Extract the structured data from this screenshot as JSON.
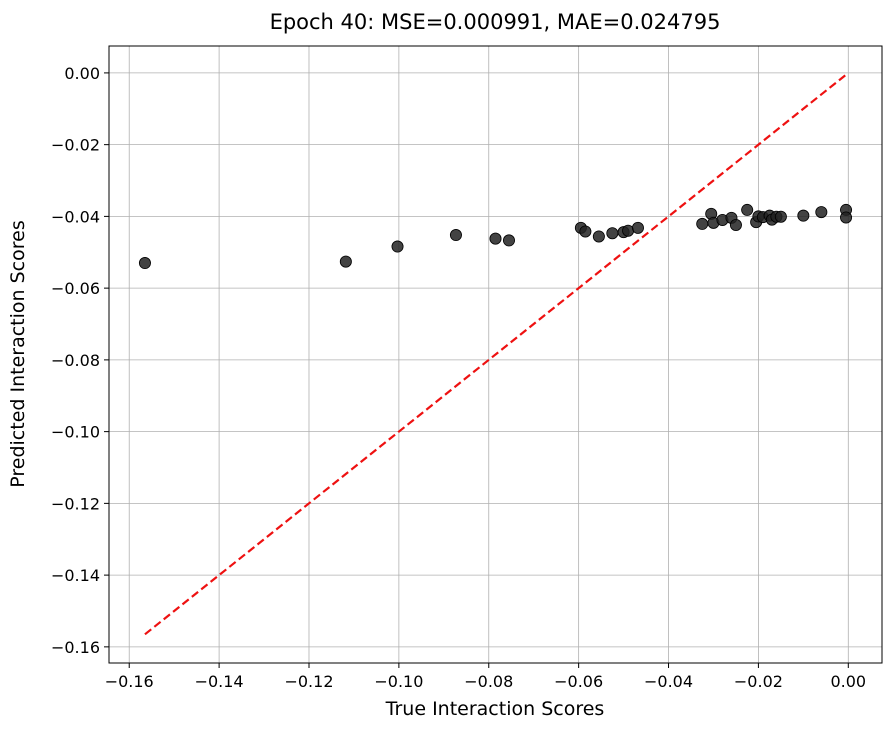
{
  "chart_data": {
    "type": "scatter",
    "title": "Epoch 40: MSE=0.000991, MAE=0.024795",
    "xlabel": "True Interaction Scores",
    "ylabel": "Predicted Interaction Scores",
    "xlim": [
      -0.1645,
      0.0075
    ],
    "ylim": [
      -0.1645,
      0.0075
    ],
    "grid": true,
    "xticks": [
      -0.16,
      -0.14,
      -0.12,
      -0.1,
      -0.08,
      -0.06,
      -0.04,
      -0.02,
      0.0
    ],
    "yticks": [
      -0.16,
      -0.14,
      -0.12,
      -0.1,
      -0.08,
      -0.06,
      -0.04,
      -0.02,
      0.0
    ],
    "xtick_labels": [
      "−0.16",
      "−0.14",
      "−0.12",
      "−0.10",
      "−0.08",
      "−0.06",
      "−0.04",
      "−0.02",
      "0.00"
    ],
    "ytick_labels": [
      "−0.16",
      "−0.14",
      "−0.12",
      "−0.10",
      "−0.08",
      "−0.06",
      "−0.04",
      "−0.02",
      "0.00"
    ],
    "point_color": "#222222",
    "reference_line": {
      "from": [
        -0.1565,
        -0.1565
      ],
      "to": [
        0.0,
        0.0
      ],
      "color": "#ee1111",
      "style": "dashed"
    },
    "points": [
      {
        "x": -0.1565,
        "y": -0.053
      },
      {
        "x": -0.1118,
        "y": -0.0526
      },
      {
        "x": -0.1003,
        "y": -0.0484
      },
      {
        "x": -0.0873,
        "y": -0.0452
      },
      {
        "x": -0.0785,
        "y": -0.0462
      },
      {
        "x": -0.0755,
        "y": -0.0467
      },
      {
        "x": -0.0595,
        "y": -0.0432
      },
      {
        "x": -0.0585,
        "y": -0.0442
      },
      {
        "x": -0.0555,
        "y": -0.0456
      },
      {
        "x": -0.0525,
        "y": -0.0447
      },
      {
        "x": -0.05,
        "y": -0.0444
      },
      {
        "x": -0.049,
        "y": -0.044
      },
      {
        "x": -0.0468,
        "y": -0.0432
      },
      {
        "x": -0.0325,
        "y": -0.0421
      },
      {
        "x": -0.0305,
        "y": -0.0393
      },
      {
        "x": -0.03,
        "y": -0.0418
      },
      {
        "x": -0.028,
        "y": -0.041
      },
      {
        "x": -0.026,
        "y": -0.0404
      },
      {
        "x": -0.025,
        "y": -0.0424
      },
      {
        "x": -0.0225,
        "y": -0.0382
      },
      {
        "x": -0.0205,
        "y": -0.0416
      },
      {
        "x": -0.02,
        "y": -0.04
      },
      {
        "x": -0.019,
        "y": -0.0402
      },
      {
        "x": -0.0175,
        "y": -0.0398
      },
      {
        "x": -0.017,
        "y": -0.0409
      },
      {
        "x": -0.016,
        "y": -0.0401
      },
      {
        "x": -0.015,
        "y": -0.0401
      },
      {
        "x": -0.01,
        "y": -0.0398
      },
      {
        "x": -0.006,
        "y": -0.0388
      },
      {
        "x": -0.0005,
        "y": -0.0382
      },
      {
        "x": -0.0005,
        "y": -0.0403
      }
    ]
  }
}
